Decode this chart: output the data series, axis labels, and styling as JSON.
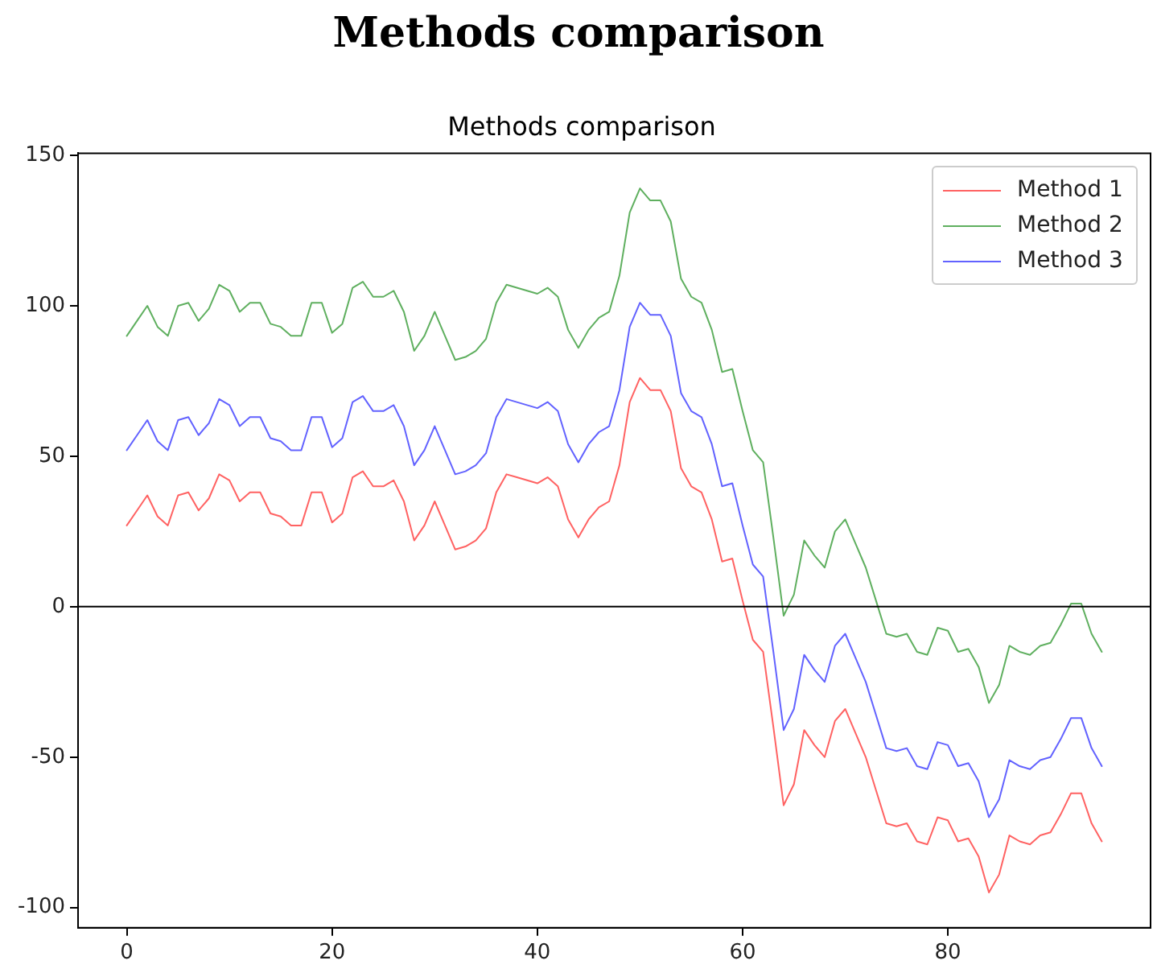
{
  "chart_data": {
    "type": "line",
    "title": "Methods comparison",
    "subtitle": "Methods comparison",
    "x": [
      0,
      1,
      2,
      3,
      4,
      5,
      6,
      7,
      8,
      9,
      10,
      11,
      12,
      13,
      14,
      15,
      16,
      17,
      18,
      19,
      20,
      21,
      22,
      23,
      24,
      25,
      26,
      27,
      28,
      29,
      30,
      31,
      32,
      33,
      34,
      35,
      36,
      37,
      38,
      39,
      40,
      41,
      42,
      43,
      44,
      45,
      46,
      47,
      48,
      49,
      50,
      51,
      52,
      53,
      54,
      55,
      56,
      57,
      58,
      59,
      60,
      61,
      62,
      63,
      64,
      65,
      66,
      67,
      68,
      69,
      70,
      71,
      72,
      73,
      74,
      75,
      76,
      77,
      78,
      79,
      80,
      81,
      82,
      83,
      84,
      85,
      86,
      87,
      88,
      89,
      90,
      91,
      92,
      93,
      94,
      95
    ],
    "series": [
      {
        "name": "Method 1",
        "color": "#ff6262",
        "values": [
          27,
          32,
          37,
          30,
          27,
          37,
          38,
          32,
          36,
          44,
          42,
          35,
          38,
          38,
          31,
          30,
          27,
          27,
          38,
          38,
          28,
          31,
          43,
          45,
          40,
          40,
          42,
          35,
          22,
          27,
          35,
          27,
          19,
          20,
          22,
          26,
          38,
          44,
          43,
          42,
          41,
          43,
          40,
          29,
          23,
          29,
          33,
          35,
          47,
          68,
          76,
          72,
          72,
          65,
          46,
          40,
          38,
          29,
          15,
          16,
          2,
          -11,
          -15,
          -40,
          -66,
          -59,
          -41,
          -46,
          -50,
          -38,
          -34,
          -42,
          -50,
          -61,
          -72,
          -73,
          -72,
          -78,
          -79,
          -70,
          -71,
          -78,
          -77,
          -83,
          -95,
          -89,
          -76,
          -78,
          -79,
          -76,
          -75,
          -69,
          -62,
          -62,
          -72,
          -78
        ]
      },
      {
        "name": "Method 2",
        "color": "#5faf5f",
        "values": [
          90,
          95,
          100,
          93,
          90,
          100,
          101,
          95,
          99,
          107,
          105,
          98,
          101,
          101,
          94,
          93,
          90,
          90,
          101,
          101,
          91,
          94,
          106,
          108,
          103,
          103,
          105,
          98,
          85,
          90,
          98,
          90,
          82,
          83,
          85,
          89,
          101,
          107,
          106,
          105,
          104,
          106,
          103,
          92,
          86,
          92,
          96,
          98,
          110,
          131,
          139,
          135,
          135,
          128,
          109,
          103,
          101,
          92,
          78,
          79,
          65,
          52,
          48,
          23,
          -3,
          4,
          22,
          17,
          13,
          25,
          29,
          21,
          13,
          2,
          -9,
          -10,
          -9,
          -15,
          -16,
          -7,
          -8,
          -15,
          -14,
          -20,
          -32,
          -26,
          -13,
          -15,
          -16,
          -13,
          -12,
          -6,
          1,
          1,
          -9,
          -15
        ]
      },
      {
        "name": "Method 3",
        "color": "#6262ff",
        "values": [
          52,
          57,
          62,
          55,
          52,
          62,
          63,
          57,
          61,
          69,
          67,
          60,
          63,
          63,
          56,
          55,
          52,
          52,
          63,
          63,
          53,
          56,
          68,
          70,
          65,
          65,
          67,
          60,
          47,
          52,
          60,
          52,
          44,
          45,
          47,
          51,
          63,
          69,
          68,
          67,
          66,
          68,
          65,
          54,
          48,
          54,
          58,
          60,
          72,
          93,
          101,
          97,
          97,
          90,
          71,
          65,
          63,
          54,
          40,
          41,
          27,
          14,
          10,
          -15,
          -41,
          -34,
          -16,
          -21,
          -25,
          -13,
          -9,
          -17,
          -25,
          -36,
          -47,
          -48,
          -47,
          -53,
          -54,
          -45,
          -46,
          -53,
          -52,
          -58,
          -70,
          -64,
          -51,
          -53,
          -54,
          -51,
          -50,
          -44,
          -37,
          -37,
          -47,
          -53
        ]
      }
    ],
    "xlim": [
      -4.75,
      99.75
    ],
    "xticks": [
      0,
      20,
      40,
      60,
      80
    ],
    "ylim": [
      -106.7,
      150.7
    ],
    "yticks": [
      -100,
      -50,
      0,
      50,
      100,
      150
    ],
    "ref_lines": [
      {
        "axis": "y",
        "value": 0,
        "color": "#000000"
      }
    ],
    "legend": "top right",
    "grid": false,
    "marker": "none",
    "line_style": "solid"
  }
}
